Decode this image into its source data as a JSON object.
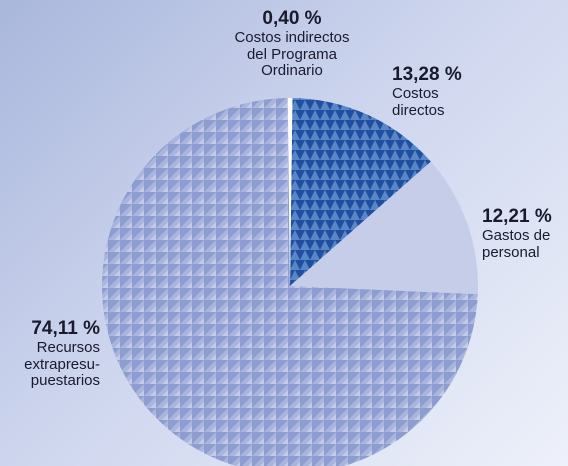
{
  "chart_data": {
    "type": "pie",
    "slices": [
      {
        "value_label": "13,28 %",
        "label": "Costos\ndirectos",
        "value": 13.28,
        "pattern": "dark"
      },
      {
        "value_label": "12,21 %",
        "label": "Gastos de\npersonal",
        "value": 12.21,
        "pattern": "plain"
      },
      {
        "value_label": "74,11 %",
        "label": "Recursos\nextrapresu-\npuestarios",
        "value": 74.11,
        "pattern": "light"
      },
      {
        "value_label": "0,40 %",
        "label": "Costos indirectos\ndel Programa\nOrdinario",
        "value": 0.4,
        "pattern": "white"
      }
    ],
    "colors": {
      "dark_fill": "#1f4f9e",
      "dark_tri": "#5a86c8",
      "light_fill": "#a9b5dc",
      "light_tri": "#8e9dd0",
      "plain_fill": "#c6cde9",
      "white_fill": "#ffffff"
    }
  }
}
